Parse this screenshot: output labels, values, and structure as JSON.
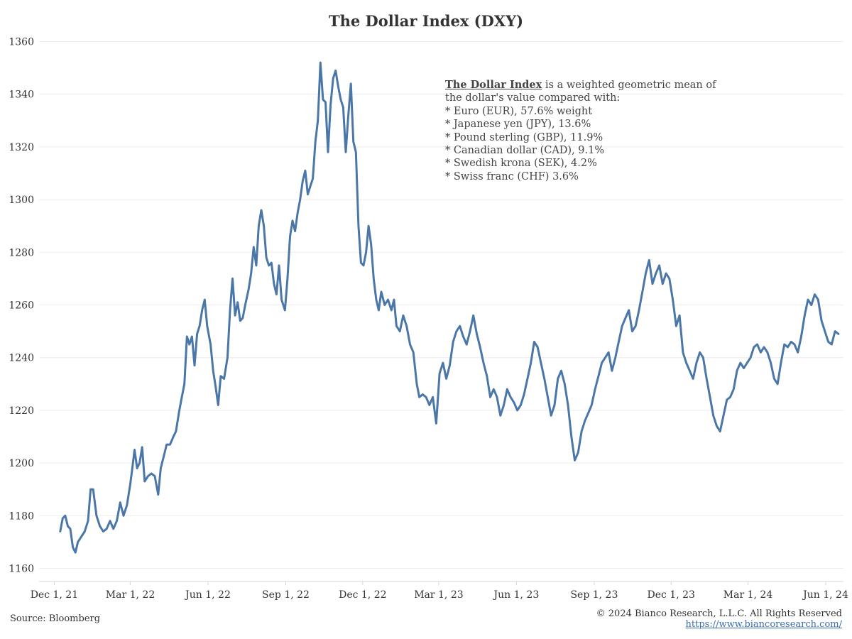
{
  "chart_data": {
    "type": "line",
    "title": "The Dollar Index (DXY)",
    "xlabel": "",
    "ylabel": "",
    "y_ticks": [
      1160,
      1180,
      1200,
      1220,
      1240,
      1260,
      1280,
      1300,
      1320,
      1340,
      1360
    ],
    "x_ticks": [
      "Dec 1, 21",
      "Mar 1, 22",
      "Jun 1, 22",
      "Sep 1, 22",
      "Dec 1, 22",
      "Mar 1, 23",
      "Jun 1, 23",
      "Sep 1, 23",
      "Dec 1, 23",
      "Mar 1, 24",
      "Jun 1, 24"
    ],
    "x_tick_dates": [
      "2021-12-01",
      "2022-03-01",
      "2022-06-01",
      "2022-09-01",
      "2022-12-01",
      "2023-03-01",
      "2023-06-01",
      "2023-09-01",
      "2023-12-01",
      "2024-03-01",
      "2024-06-01"
    ],
    "xlim": [
      "2021-11-13",
      "2024-06-22"
    ],
    "ylim": [
      1155,
      1365
    ],
    "grid": true,
    "legend": "none",
    "series": [
      {
        "color": "#4a76a8",
        "points": [
          [
            "2021-12-08",
            1174
          ],
          [
            "2021-12-11",
            1179
          ],
          [
            "2021-12-14",
            1180
          ],
          [
            "2021-12-17",
            1176
          ],
          [
            "2021-12-20",
            1175
          ],
          [
            "2021-12-23",
            1168
          ],
          [
            "2021-12-26",
            1166
          ],
          [
            "2021-12-29",
            1170
          ],
          [
            "2022-01-02",
            1172
          ],
          [
            "2022-01-06",
            1174
          ],
          [
            "2022-01-10",
            1178
          ],
          [
            "2022-01-13",
            1190
          ],
          [
            "2022-01-16",
            1190
          ],
          [
            "2022-01-20",
            1180
          ],
          [
            "2022-01-24",
            1176
          ],
          [
            "2022-01-28",
            1174
          ],
          [
            "2022-02-01",
            1175
          ],
          [
            "2022-02-05",
            1178
          ],
          [
            "2022-02-09",
            1175
          ],
          [
            "2022-02-13",
            1178
          ],
          [
            "2022-02-17",
            1185
          ],
          [
            "2022-02-21",
            1180
          ],
          [
            "2022-02-25",
            1184
          ],
          [
            "2022-03-01",
            1192
          ],
          [
            "2022-03-03",
            1197
          ],
          [
            "2022-03-06",
            1205
          ],
          [
            "2022-03-09",
            1198
          ],
          [
            "2022-03-12",
            1200
          ],
          [
            "2022-03-15",
            1206
          ],
          [
            "2022-03-18",
            1193
          ],
          [
            "2022-03-22",
            1195
          ],
          [
            "2022-03-26",
            1196
          ],
          [
            "2022-03-30",
            1195
          ],
          [
            "2022-04-03",
            1188
          ],
          [
            "2022-04-06",
            1198
          ],
          [
            "2022-04-10",
            1203
          ],
          [
            "2022-04-13",
            1207
          ],
          [
            "2022-04-17",
            1207
          ],
          [
            "2022-04-21",
            1210
          ],
          [
            "2022-04-24",
            1212
          ],
          [
            "2022-04-28",
            1220
          ],
          [
            "2022-05-01",
            1225
          ],
          [
            "2022-05-04",
            1230
          ],
          [
            "2022-05-07",
            1248
          ],
          [
            "2022-05-10",
            1245
          ],
          [
            "2022-05-13",
            1248
          ],
          [
            "2022-05-16",
            1237
          ],
          [
            "2022-05-19",
            1249
          ],
          [
            "2022-05-22",
            1252
          ],
          [
            "2022-05-25",
            1258
          ],
          [
            "2022-05-28",
            1262
          ],
          [
            "2022-05-31",
            1252
          ],
          [
            "2022-06-04",
            1245
          ],
          [
            "2022-06-07",
            1235
          ],
          [
            "2022-06-10",
            1229
          ],
          [
            "2022-06-13",
            1222
          ],
          [
            "2022-06-16",
            1233
          ],
          [
            "2022-06-20",
            1232
          ],
          [
            "2022-06-24",
            1240
          ],
          [
            "2022-06-27",
            1258
          ],
          [
            "2022-06-30",
            1270
          ],
          [
            "2022-07-03",
            1256
          ],
          [
            "2022-07-06",
            1261
          ],
          [
            "2022-07-09",
            1254
          ],
          [
            "2022-07-12",
            1255
          ],
          [
            "2022-07-15",
            1260
          ],
          [
            "2022-07-19",
            1266
          ],
          [
            "2022-07-22",
            1272
          ],
          [
            "2022-07-25",
            1282
          ],
          [
            "2022-07-28",
            1275
          ],
          [
            "2022-07-31",
            1290
          ],
          [
            "2022-08-03",
            1296
          ],
          [
            "2022-08-06",
            1290
          ],
          [
            "2022-08-09",
            1278
          ],
          [
            "2022-08-12",
            1275
          ],
          [
            "2022-08-15",
            1276
          ],
          [
            "2022-08-18",
            1268
          ],
          [
            "2022-08-21",
            1264
          ],
          [
            "2022-08-24",
            1275
          ],
          [
            "2022-08-27",
            1262
          ],
          [
            "2022-08-31",
            1258
          ],
          [
            "2022-09-03",
            1270
          ],
          [
            "2022-09-06",
            1286
          ],
          [
            "2022-09-09",
            1292
          ],
          [
            "2022-09-12",
            1288
          ],
          [
            "2022-09-15",
            1295
          ],
          [
            "2022-09-18",
            1300
          ],
          [
            "2022-09-21",
            1307
          ],
          [
            "2022-09-24",
            1311
          ],
          [
            "2022-09-27",
            1302
          ],
          [
            "2022-09-30",
            1305
          ],
          [
            "2022-10-03",
            1308
          ],
          [
            "2022-10-06",
            1322
          ],
          [
            "2022-10-09",
            1330
          ],
          [
            "2022-10-12",
            1352
          ],
          [
            "2022-10-15",
            1338
          ],
          [
            "2022-10-18",
            1337
          ],
          [
            "2022-10-21",
            1318
          ],
          [
            "2022-10-24",
            1336
          ],
          [
            "2022-10-27",
            1346
          ],
          [
            "2022-10-30",
            1349
          ],
          [
            "2022-11-02",
            1343
          ],
          [
            "2022-11-05",
            1338
          ],
          [
            "2022-11-08",
            1335
          ],
          [
            "2022-11-11",
            1318
          ],
          [
            "2022-11-14",
            1332
          ],
          [
            "2022-11-17",
            1344
          ],
          [
            "2022-11-20",
            1322
          ],
          [
            "2022-11-23",
            1318
          ],
          [
            "2022-11-26",
            1290
          ],
          [
            "2022-11-29",
            1276
          ],
          [
            "2022-12-02",
            1275
          ],
          [
            "2022-12-05",
            1280
          ],
          [
            "2022-12-08",
            1290
          ],
          [
            "2022-12-11",
            1283
          ],
          [
            "2022-12-14",
            1270
          ],
          [
            "2022-12-17",
            1262
          ],
          [
            "2022-12-20",
            1258
          ],
          [
            "2022-12-23",
            1265
          ],
          [
            "2022-12-27",
            1260
          ],
          [
            "2022-12-31",
            1262
          ],
          [
            "2023-01-04",
            1258
          ],
          [
            "2023-01-07",
            1262
          ],
          [
            "2023-01-10",
            1252
          ],
          [
            "2023-01-14",
            1250
          ],
          [
            "2023-01-18",
            1256
          ],
          [
            "2023-01-22",
            1252
          ],
          [
            "2023-01-26",
            1245
          ],
          [
            "2023-01-30",
            1242
          ],
          [
            "2023-02-03",
            1230
          ],
          [
            "2023-02-06",
            1225
          ],
          [
            "2023-02-10",
            1226
          ],
          [
            "2023-02-14",
            1225
          ],
          [
            "2023-02-18",
            1222
          ],
          [
            "2023-02-22",
            1225
          ],
          [
            "2023-02-26",
            1215
          ],
          [
            "2023-03-02",
            1234
          ],
          [
            "2023-03-06",
            1238
          ],
          [
            "2023-03-10",
            1232
          ],
          [
            "2023-03-14",
            1237
          ],
          [
            "2023-03-18",
            1246
          ],
          [
            "2023-03-22",
            1250
          ],
          [
            "2023-03-26",
            1252
          ],
          [
            "2023-03-30",
            1248
          ],
          [
            "2023-04-03",
            1245
          ],
          [
            "2023-04-07",
            1250
          ],
          [
            "2023-04-11",
            1256
          ],
          [
            "2023-04-15",
            1249
          ],
          [
            "2023-04-19",
            1244
          ],
          [
            "2023-04-23",
            1238
          ],
          [
            "2023-04-27",
            1233
          ],
          [
            "2023-05-01",
            1225
          ],
          [
            "2023-05-05",
            1228
          ],
          [
            "2023-05-09",
            1225
          ],
          [
            "2023-05-13",
            1218
          ],
          [
            "2023-05-17",
            1222
          ],
          [
            "2023-05-21",
            1228
          ],
          [
            "2023-05-25",
            1225
          ],
          [
            "2023-05-29",
            1223
          ],
          [
            "2023-06-02",
            1220
          ],
          [
            "2023-06-06",
            1222
          ],
          [
            "2023-06-10",
            1226
          ],
          [
            "2023-06-14",
            1232
          ],
          [
            "2023-06-18",
            1238
          ],
          [
            "2023-06-22",
            1246
          ],
          [
            "2023-06-26",
            1244
          ],
          [
            "2023-06-30",
            1238
          ],
          [
            "2023-07-04",
            1232
          ],
          [
            "2023-07-08",
            1225
          ],
          [
            "2023-07-12",
            1218
          ],
          [
            "2023-07-16",
            1222
          ],
          [
            "2023-07-20",
            1232
          ],
          [
            "2023-07-24",
            1235
          ],
          [
            "2023-07-28",
            1230
          ],
          [
            "2023-08-01",
            1222
          ],
          [
            "2023-08-05",
            1210
          ],
          [
            "2023-08-09",
            1201
          ],
          [
            "2023-08-13",
            1204
          ],
          [
            "2023-08-17",
            1212
          ],
          [
            "2023-08-21",
            1216
          ],
          [
            "2023-08-25",
            1219
          ],
          [
            "2023-08-29",
            1222
          ],
          [
            "2023-09-02",
            1228
          ],
          [
            "2023-09-06",
            1233
          ],
          [
            "2023-09-10",
            1238
          ],
          [
            "2023-09-14",
            1240
          ],
          [
            "2023-09-18",
            1242
          ],
          [
            "2023-09-22",
            1235
          ],
          [
            "2023-09-26",
            1240
          ],
          [
            "2023-09-30",
            1246
          ],
          [
            "2023-10-04",
            1252
          ],
          [
            "2023-10-08",
            1255
          ],
          [
            "2023-10-12",
            1258
          ],
          [
            "2023-10-16",
            1250
          ],
          [
            "2023-10-20",
            1252
          ],
          [
            "2023-10-24",
            1258
          ],
          [
            "2023-10-28",
            1265
          ],
          [
            "2023-11-01",
            1272
          ],
          [
            "2023-11-05",
            1277
          ],
          [
            "2023-11-09",
            1268
          ],
          [
            "2023-11-13",
            1272
          ],
          [
            "2023-11-17",
            1275
          ],
          [
            "2023-11-21",
            1268
          ],
          [
            "2023-11-25",
            1272
          ],
          [
            "2023-11-29",
            1270
          ],
          [
            "2023-12-03",
            1262
          ],
          [
            "2023-12-07",
            1252
          ],
          [
            "2023-12-11",
            1256
          ],
          [
            "2023-12-15",
            1242
          ],
          [
            "2023-12-19",
            1238
          ],
          [
            "2023-12-23",
            1235
          ],
          [
            "2023-12-27",
            1232
          ],
          [
            "2023-12-31",
            1238
          ],
          [
            "2024-01-04",
            1242
          ],
          [
            "2024-01-08",
            1240
          ],
          [
            "2024-01-12",
            1232
          ],
          [
            "2024-01-16",
            1225
          ],
          [
            "2024-01-20",
            1218
          ],
          [
            "2024-01-24",
            1214
          ],
          [
            "2024-01-28",
            1212
          ],
          [
            "2024-02-01",
            1218
          ],
          [
            "2024-02-05",
            1224
          ],
          [
            "2024-02-09",
            1225
          ],
          [
            "2024-02-13",
            1228
          ],
          [
            "2024-02-17",
            1235
          ],
          [
            "2024-02-21",
            1238
          ],
          [
            "2024-02-25",
            1236
          ],
          [
            "2024-02-29",
            1238
          ],
          [
            "2024-03-04",
            1240
          ],
          [
            "2024-03-08",
            1244
          ],
          [
            "2024-03-12",
            1245
          ],
          [
            "2024-03-16",
            1242
          ],
          [
            "2024-03-20",
            1244
          ],
          [
            "2024-03-24",
            1242
          ],
          [
            "2024-03-28",
            1238
          ],
          [
            "2024-04-01",
            1232
          ],
          [
            "2024-04-05",
            1230
          ],
          [
            "2024-04-09",
            1238
          ],
          [
            "2024-04-13",
            1245
          ],
          [
            "2024-04-17",
            1244
          ],
          [
            "2024-04-21",
            1246
          ],
          [
            "2024-04-25",
            1245
          ],
          [
            "2024-04-29",
            1242
          ],
          [
            "2024-05-03",
            1248
          ],
          [
            "2024-05-07",
            1256
          ],
          [
            "2024-05-11",
            1262
          ],
          [
            "2024-05-15",
            1260
          ],
          [
            "2024-05-19",
            1264
          ],
          [
            "2024-05-23",
            1262
          ],
          [
            "2024-05-27",
            1254
          ],
          [
            "2024-05-31",
            1250
          ],
          [
            "2024-06-04",
            1246
          ],
          [
            "2024-06-08",
            1245
          ],
          [
            "2024-06-12",
            1250
          ],
          [
            "2024-06-16",
            1249
          ]
        ]
      }
    ]
  },
  "annotation": {
    "head": "The Dollar Index",
    "head_rest": " is a weighted geometric mean of",
    "lines": [
      "the dollar's value compared with:",
      "* Euro (EUR), 57.6% weight",
      "* Japanese yen (JPY), 13.6%",
      "* Pound sterling (GBP), 11.9%",
      "* Canadian dollar (CAD), 9.1%",
      "* Swedish krona (SEK), 4.2%",
      "* Swiss franc (CHF) 3.6%"
    ]
  },
  "footer": {
    "source": "Source: Bloomberg",
    "copyright": "© 2024 Bianco Research, L.L.C. All Rights Reserved",
    "url": "https://www.biancoresearch.com/"
  }
}
